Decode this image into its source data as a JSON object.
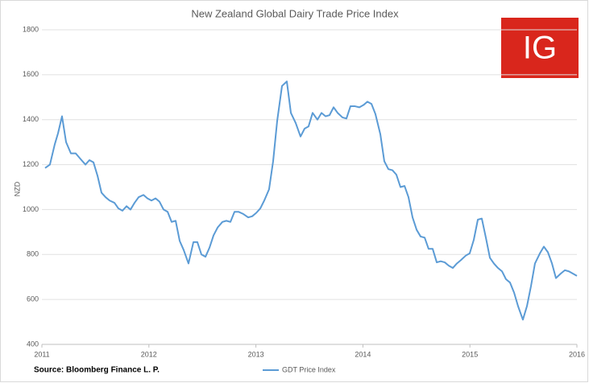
{
  "chart_data": {
    "type": "line",
    "title": "New Zealand Global Dairy Trade Price Index",
    "y_label": "NZD",
    "source": "Source: Bloomberg Finance L. P.",
    "logo": "IG",
    "xlim": [
      2011,
      2016
    ],
    "xticks": [
      2011,
      2012,
      2013,
      2014,
      2015,
      2016
    ],
    "ylim": [
      400,
      1800
    ],
    "yticks": [
      400,
      600,
      800,
      1000,
      1200,
      1400,
      1600,
      1800
    ],
    "grid": true,
    "series": [
      {
        "name": "GDT Price Index",
        "color": "#5b9bd5",
        "x": [
          2011.03,
          2011.075,
          2011.12,
          2011.151,
          2011.188,
          2011.226,
          2011.271,
          2011.316,
          2011.361,
          2011.407,
          2011.444,
          2011.482,
          2011.52,
          2011.557,
          2011.595,
          2011.633,
          2011.678,
          2011.715,
          2011.753,
          2011.791,
          2011.828,
          2011.866,
          2011.904,
          2011.949,
          2011.986,
          2012.024,
          2012.062,
          2012.099,
          2012.137,
          2012.175,
          2012.212,
          2012.25,
          2012.288,
          2012.325,
          2012.37,
          2012.416,
          2012.453,
          2012.491,
          2012.529,
          2012.566,
          2012.604,
          2012.642,
          2012.687,
          2012.724,
          2012.762,
          2012.8,
          2012.837,
          2012.883,
          2012.928,
          2012.965,
          2013.003,
          2013.041,
          2013.078,
          2013.123,
          2013.161,
          2013.199,
          2013.244,
          2013.289,
          2013.327,
          2013.372,
          2013.417,
          2013.455,
          2013.492,
          2013.53,
          2013.575,
          2013.613,
          2013.651,
          2013.688,
          2013.726,
          2013.764,
          2013.809,
          2013.846,
          2013.884,
          2013.922,
          2013.967,
          2014.005,
          2014.042,
          2014.08,
          2014.117,
          2014.163,
          2014.2,
          2014.238,
          2014.276,
          2014.313,
          2014.351,
          2014.389,
          2014.426,
          2014.464,
          2014.502,
          2014.539,
          2014.577,
          2014.614,
          2014.652,
          2014.69,
          2014.727,
          2014.765,
          2014.803,
          2014.84,
          2014.878,
          2014.916,
          2014.961,
          2014.998,
          2015.036,
          2015.074,
          2015.111,
          2015.149,
          2015.187,
          2015.224,
          2015.262,
          2015.3,
          2015.337,
          2015.375,
          2015.413,
          2015.45,
          2015.495,
          2015.533,
          2015.571,
          2015.608,
          2015.654,
          2015.691,
          2015.729,
          2015.767,
          2015.804,
          2015.849,
          2015.887,
          2015.925,
          2015.962,
          2016.0
        ],
        "values": [
          1185,
          1200,
          1290,
          1340,
          1415,
          1300,
          1250,
          1250,
          1225,
          1200,
          1220,
          1210,
          1150,
          1075,
          1055,
          1040,
          1030,
          1005,
          995,
          1015,
          1000,
          1030,
          1055,
          1065,
          1050,
          1040,
          1050,
          1035,
          1000,
          990,
          945,
          950,
          860,
          820,
          760,
          855,
          855,
          800,
          790,
          830,
          885,
          920,
          945,
          950,
          945,
          990,
          990,
          980,
          965,
          970,
          985,
          1005,
          1040,
          1090,
          1215,
          1395,
          1550,
          1570,
          1430,
          1385,
          1325,
          1360,
          1370,
          1430,
          1400,
          1430,
          1415,
          1420,
          1455,
          1430,
          1410,
          1405,
          1460,
          1460,
          1455,
          1465,
          1480,
          1470,
          1425,
          1335,
          1215,
          1180,
          1175,
          1155,
          1100,
          1105,
          1055,
          965,
          910,
          880,
          875,
          825,
          825,
          765,
          770,
          765,
          750,
          740,
          760,
          775,
          795,
          805,
          865,
          955,
          960,
          875,
          785,
          760,
          740,
          725,
          690,
          675,
          630,
          570,
          510,
          570,
          660,
          760,
          805,
          835,
          810,
          760,
          695,
          715,
          730,
          725,
          715,
          705
        ]
      }
    ]
  }
}
